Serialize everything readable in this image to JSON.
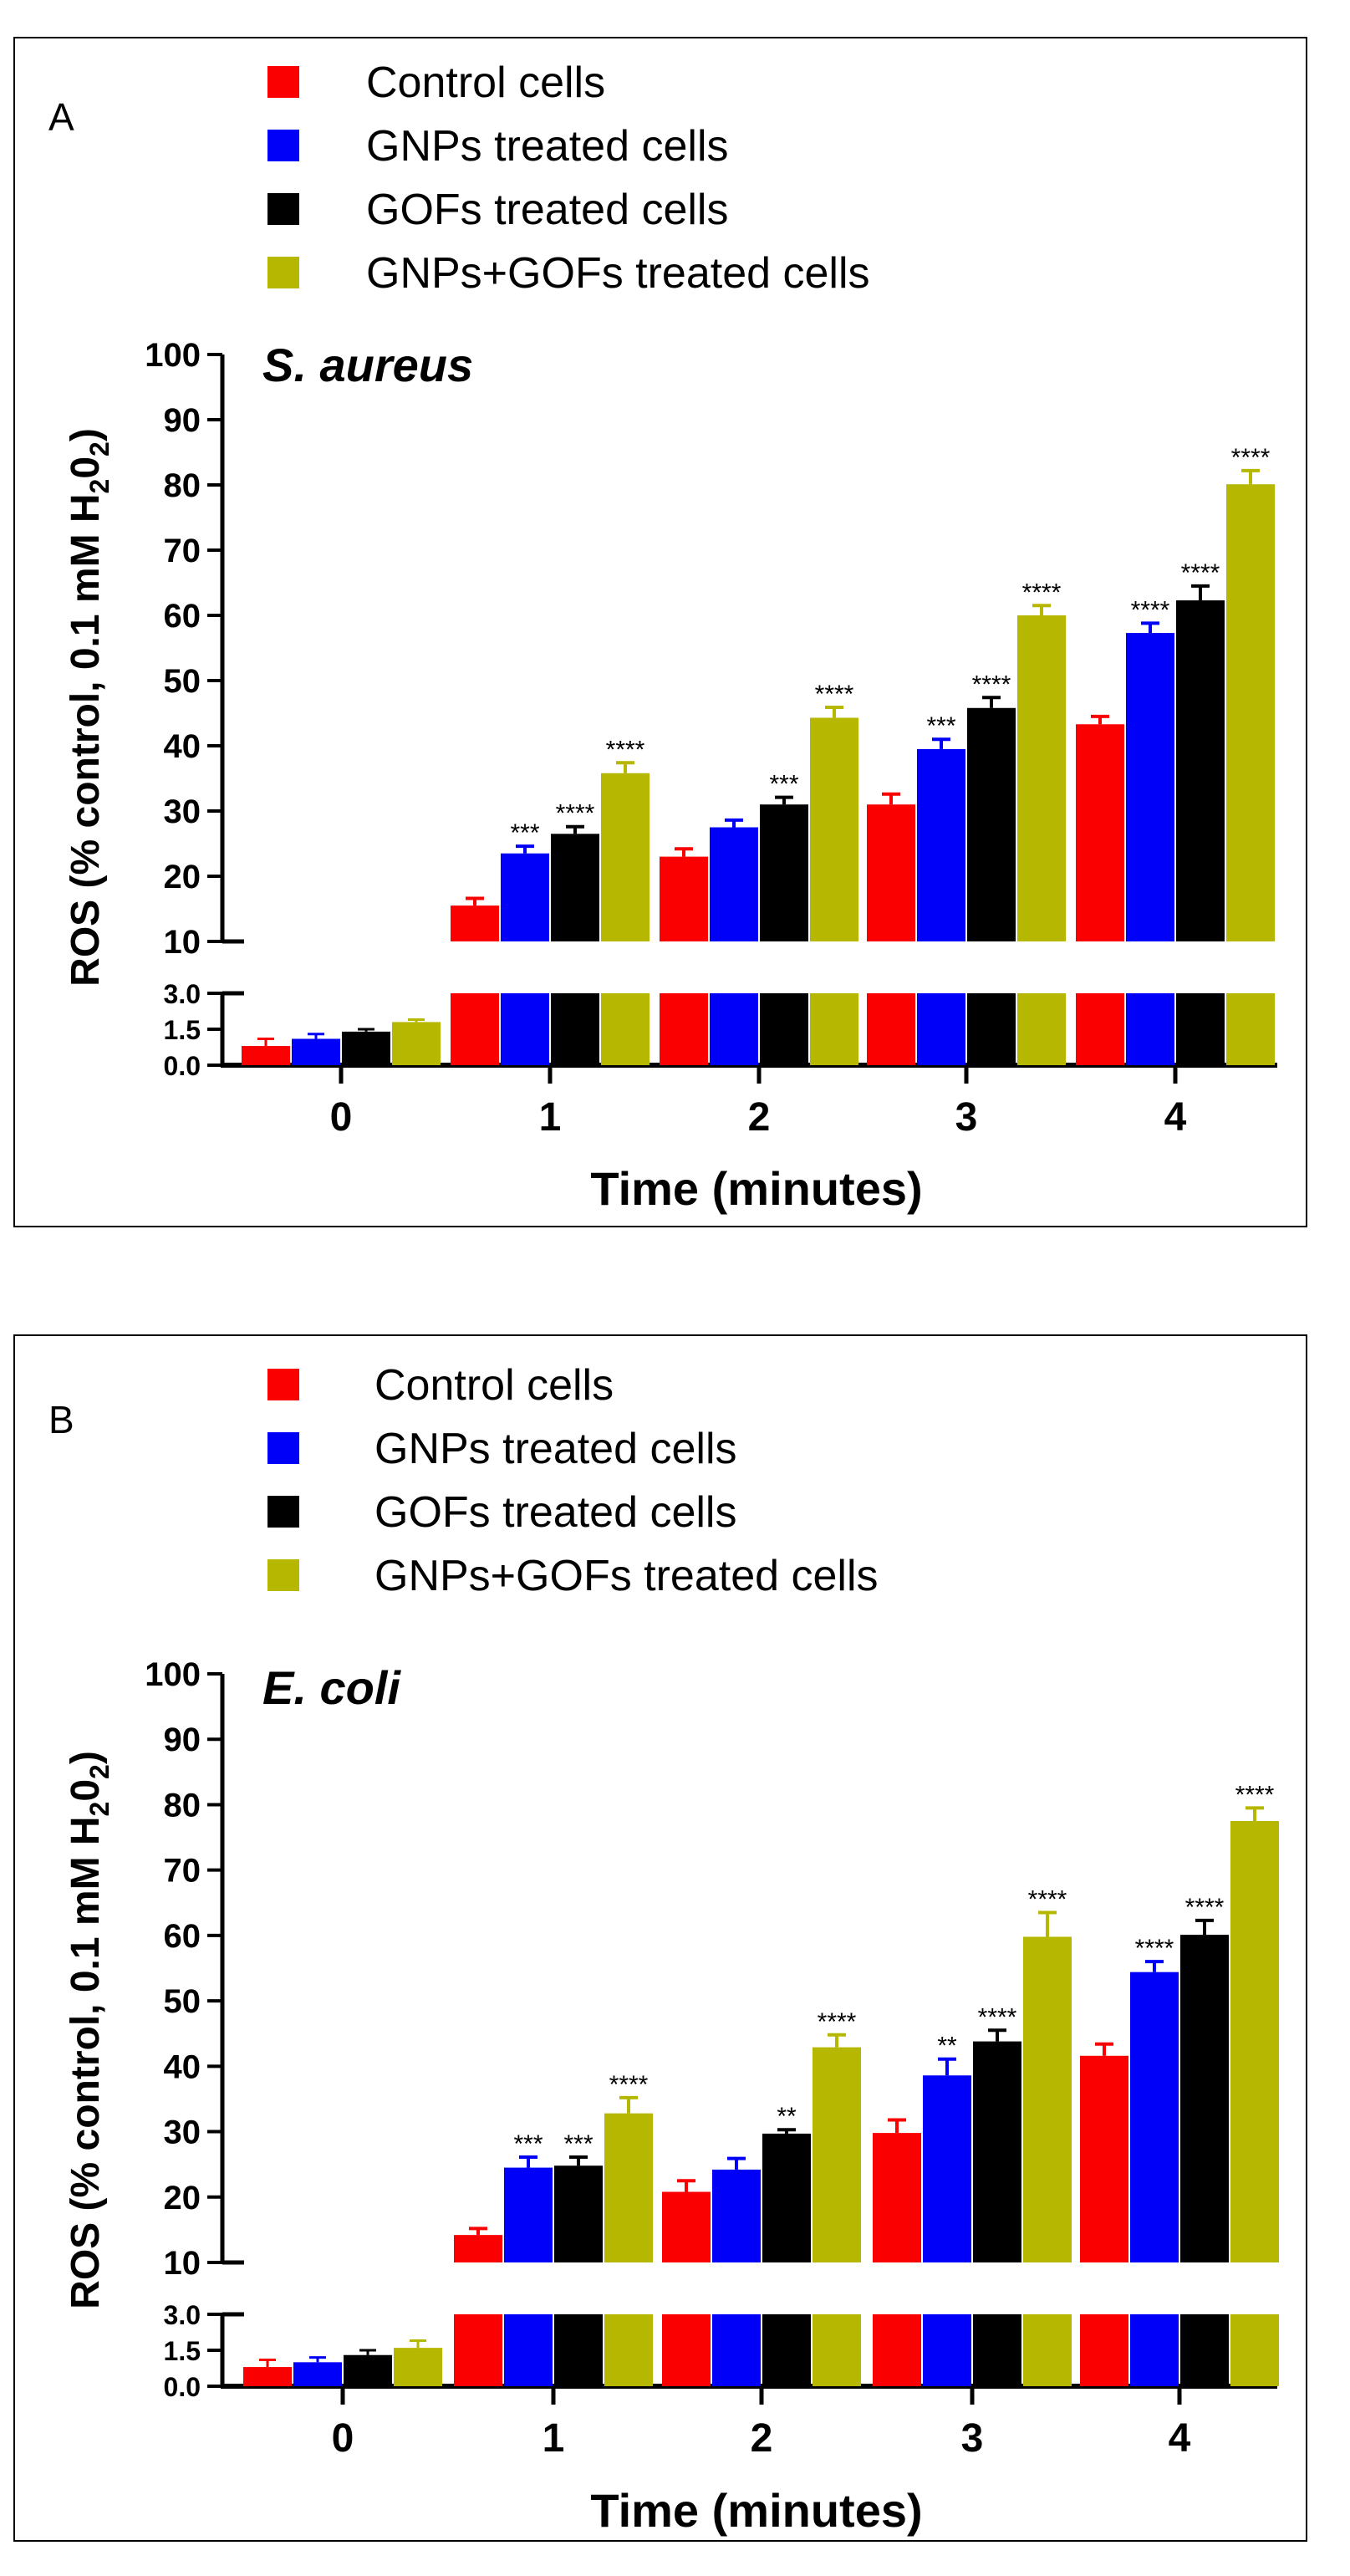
{
  "figure": {
    "legend_entries": [
      "Control cells",
      "GNPs treated cells",
      "GOFs treated cells",
      "GNPs+GOFs treated cells"
    ],
    "series_colors": [
      "#fb0000",
      "#0000f8",
      "#000000",
      "#b5b700"
    ],
    "axis_labels": {
      "xlabel": "Time (minutes)",
      "ylabel_main": "ROS (% control, 0.1 mM H",
      "ylabel_sub1": "2",
      "ylabel_mid": "0",
      "ylabel_sub2": "2",
      "ylabel_end": ")"
    }
  },
  "chart_data": [
    {
      "panel_label": "A",
      "type": "bar",
      "title": "S. aureus",
      "xlabel": "Time (minutes)",
      "ylabel": "ROS (% control, 0.1 mM H2O2)",
      "categories": [
        "0",
        "1",
        "2",
        "3",
        "4"
      ],
      "y_upper_range": [
        10,
        100
      ],
      "y_upper_ticks": [
        "10",
        "20",
        "30",
        "40",
        "50",
        "60",
        "70",
        "80",
        "90",
        "100"
      ],
      "y_lower_range": [
        0,
        3
      ],
      "y_lower_ticks": [
        "0.0",
        "1.5",
        "3.0"
      ],
      "series": [
        {
          "name": "Control cells",
          "values": [
            0.8,
            15.5,
            23,
            31,
            43.3
          ],
          "errors": [
            0.3,
            1.1,
            1.2,
            1.6,
            1.2
          ],
          "stars": [
            "",
            "",
            "",
            "",
            ""
          ]
        },
        {
          "name": "GNPs treated cells",
          "values": [
            1.1,
            23.5,
            27.5,
            39.5,
            57.3
          ],
          "errors": [
            0.2,
            1.1,
            1.1,
            1.5,
            1.5
          ],
          "stars": [
            "",
            "***",
            "",
            "***",
            "****"
          ]
        },
        {
          "name": "GOFs treated cells",
          "values": [
            1.4,
            26.5,
            31,
            45.8,
            62.3
          ],
          "errors": [
            0.1,
            1.1,
            1.1,
            1.6,
            2.2
          ],
          "stars": [
            "",
            "****",
            "***",
            "****",
            "****"
          ]
        },
        {
          "name": "GNPs+GOFs treated cells",
          "values": [
            1.8,
            35.8,
            44.3,
            60,
            80.1
          ],
          "errors": [
            0.1,
            1.6,
            1.6,
            1.5,
            2.1
          ],
          "stars": [
            "",
            "****",
            "****",
            "****",
            "****"
          ]
        }
      ]
    },
    {
      "panel_label": "B",
      "type": "bar",
      "title": "E. coli",
      "xlabel": "Time (minutes)",
      "ylabel": "ROS (% control, 0.1 mM H2O2)",
      "categories": [
        "0",
        "1",
        "2",
        "3",
        "4"
      ],
      "y_upper_range": [
        10,
        100
      ],
      "y_upper_ticks": [
        "10",
        "20",
        "30",
        "40",
        "50",
        "60",
        "70",
        "80",
        "90",
        "100"
      ],
      "y_lower_range": [
        0,
        3
      ],
      "y_lower_ticks": [
        "0.0",
        "1.5",
        "3.0"
      ],
      "series": [
        {
          "name": "Control cells",
          "values": [
            0.8,
            14.2,
            20.8,
            29.8,
            41.6
          ],
          "errors": [
            0.3,
            1.0,
            1.7,
            2.0,
            1.8
          ],
          "stars": [
            "",
            "",
            "",
            "",
            ""
          ]
        },
        {
          "name": "GNPs treated cells",
          "values": [
            1.0,
            24.5,
            24.2,
            38.6,
            54.4
          ],
          "errors": [
            0.2,
            1.6,
            1.7,
            2.5,
            1.6
          ],
          "stars": [
            "",
            "***",
            "",
            "**",
            "****"
          ]
        },
        {
          "name": "GOFs treated cells",
          "values": [
            1.3,
            24.8,
            29.7,
            43.8,
            60.1
          ],
          "errors": [
            0.2,
            1.3,
            0.6,
            1.7,
            2.2
          ],
          "stars": [
            "",
            "***",
            "**",
            "****",
            "****"
          ]
        },
        {
          "name": "GNPs+GOFs treated cells",
          "values": [
            1.6,
            32.8,
            42.9,
            59.8,
            77.5
          ],
          "errors": [
            0.3,
            2.4,
            1.9,
            3.7,
            2.0
          ],
          "stars": [
            "",
            "****",
            "****",
            "****",
            "****"
          ]
        }
      ]
    }
  ]
}
